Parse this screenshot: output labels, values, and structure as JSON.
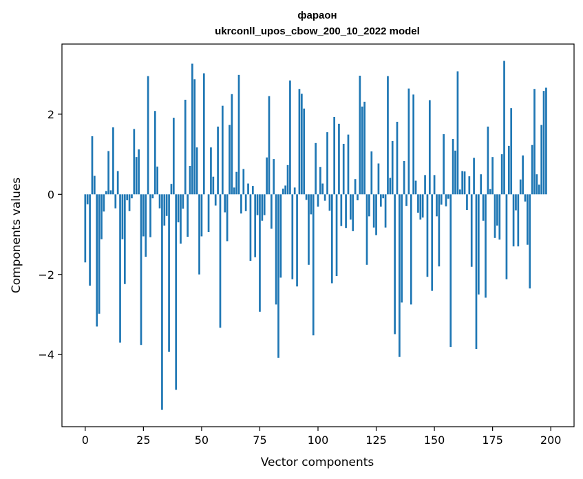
{
  "chart_data": {
    "type": "bar",
    "title_line1": "фараон",
    "title_line2": "ukrconll_upos_cbow_200_10_2022 model",
    "xlabel": "Vector components",
    "ylabel": "Components values",
    "xlim": [
      -10,
      210
    ],
    "ylim": [
      -5.8,
      3.75
    ],
    "xticks": [
      0,
      25,
      50,
      75,
      100,
      125,
      150,
      175,
      200
    ],
    "xtick_labels": [
      "0",
      "25",
      "50",
      "75",
      "100",
      "125",
      "150",
      "175",
      "200"
    ],
    "yticks": [
      -4,
      -2,
      0,
      2
    ],
    "ytick_labels": [
      "−4",
      "−2",
      "0",
      "2"
    ],
    "bar_color": "#1f77b4",
    "grid": false,
    "values": [
      -1.7,
      -0.25,
      -2.28,
      1.45,
      0.46,
      -3.3,
      -2.98,
      -1.12,
      -0.43,
      0.08,
      1.08,
      0.1,
      1.67,
      -0.35,
      0.58,
      -3.7,
      -1.12,
      -2.24,
      -0.15,
      -0.42,
      -0.1,
      1.63,
      0.93,
      1.12,
      -3.76,
      -1.05,
      -1.56,
      2.95,
      -1.07,
      -0.1,
      2.08,
      0.69,
      -0.35,
      -5.38,
      -0.78,
      -0.54,
      -3.93,
      0.26,
      1.91,
      -4.88,
      -0.7,
      -1.23,
      -0.36,
      2.36,
      -1.06,
      0.71,
      3.26,
      2.87,
      1.17,
      -2.0,
      -1.05,
      3.02,
      0.0,
      -0.94,
      1.17,
      0.44,
      -0.28,
      1.69,
      -3.33,
      2.21,
      -0.45,
      -1.17,
      1.73,
      2.5,
      0.17,
      0.56,
      2.98,
      -0.48,
      0.63,
      -0.42,
      0.27,
      -1.66,
      0.21,
      -1.57,
      -0.52,
      -2.93,
      -0.66,
      -0.52,
      0.92,
      2.45,
      -0.86,
      0.88,
      -2.75,
      -4.08,
      -2.08,
      0.14,
      0.22,
      0.73,
      2.84,
      -2.12,
      0.17,
      -2.3,
      2.63,
      2.51,
      2.14,
      -0.14,
      -1.76,
      -0.5,
      -3.52,
      1.28,
      -0.31,
      0.68,
      0.27,
      -0.16,
      1.55,
      -0.41,
      -2.22,
      1.93,
      -2.04,
      1.76,
      -0.79,
      1.26,
      -0.84,
      1.49,
      -0.63,
      -0.92,
      0.38,
      -0.15,
      2.96,
      2.19,
      2.31,
      -1.76,
      -0.55,
      1.07,
      -0.83,
      -1.02,
      0.77,
      -0.31,
      -0.1,
      -0.83,
      2.95,
      0.41,
      1.33,
      -3.49,
      1.81,
      -4.06,
      -2.7,
      0.83,
      -0.29,
      2.64,
      -2.75,
      2.49,
      0.34,
      -0.46,
      -0.63,
      -0.58,
      0.48,
      -2.06,
      2.35,
      -2.41,
      0.48,
      -0.55,
      -1.8,
      -0.26,
      1.5,
      -0.3,
      -0.11,
      -3.81,
      1.38,
      1.09,
      3.07,
      0.12,
      0.58,
      0.57,
      -0.39,
      0.45,
      -1.81,
      0.91,
      -3.86,
      -2.5,
      0.5,
      -0.66,
      -2.58,
      1.69,
      0.13,
      0.93,
      -1.09,
      -0.78,
      -1.13,
      1.0,
      3.33,
      -2.12,
      1.21,
      2.15,
      -1.3,
      -0.4,
      -1.3,
      0.37,
      0.97,
      -0.18,
      -1.26,
      -2.35,
      1.23,
      2.63,
      0.5,
      0.24,
      1.73,
      2.58,
      2.66
    ]
  }
}
